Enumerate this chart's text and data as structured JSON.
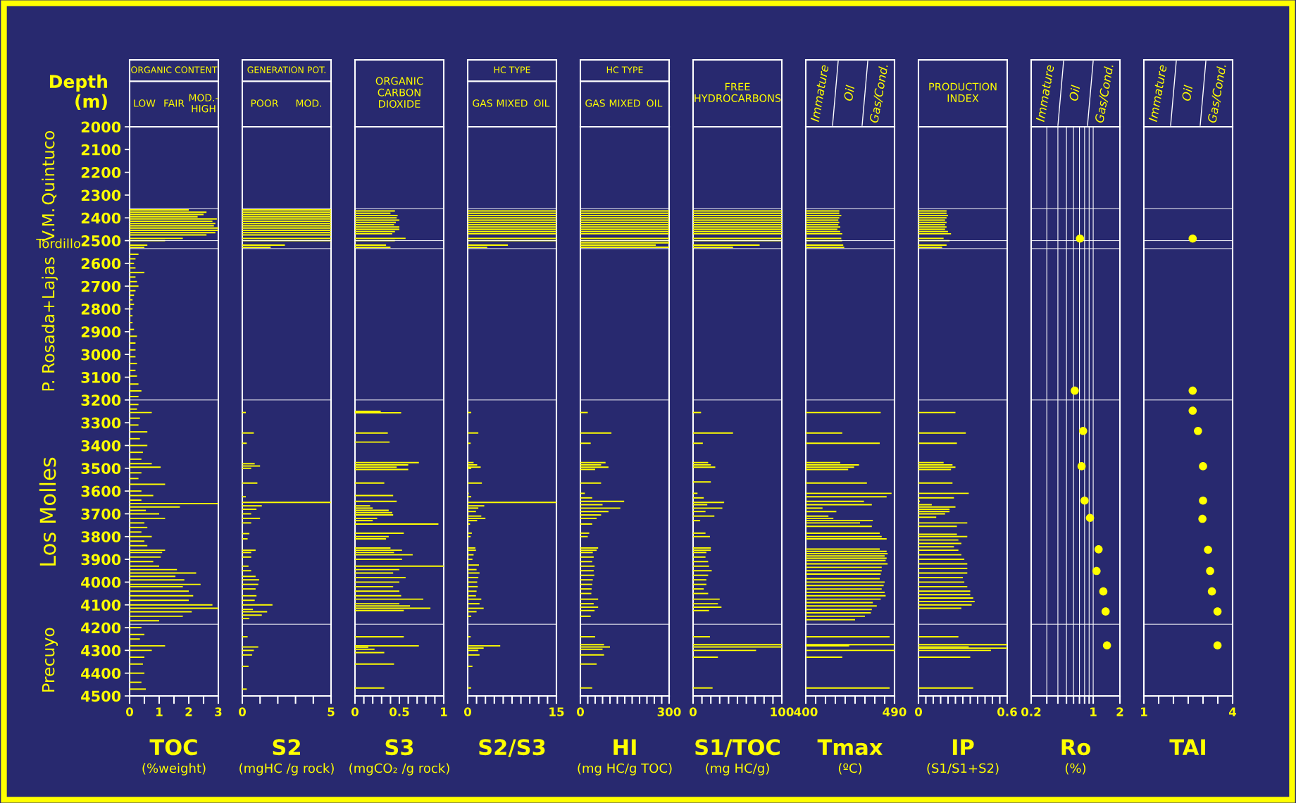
{
  "chart_data": [
    {
      "type": "bar",
      "orientation": "horizontal",
      "title": "ORGANIC CONTENT",
      "xlabel": "TOC\n(%weight)",
      "ylabel": "Depth\n(m)",
      "color": "#ffff00",
      "annotations": [
        "LOW",
        "FAIR",
        "MOD.-\nHIGH"
      ],
      "x": [
        2365,
        2375,
        2385,
        2395,
        2405,
        2415,
        2425,
        2435,
        2445,
        2455,
        2465,
        2475,
        2490,
        2500,
        2520,
        2530,
        2560,
        2580,
        2600,
        2620,
        2640,
        2660,
        2680,
        2700,
        2720,
        2740,
        2760,
        2780,
        2800,
        2830,
        2860,
        2890,
        2920,
        2950,
        2980,
        3010,
        3040,
        3070,
        3095,
        3130,
        3160,
        3185,
        3220,
        3240,
        3255,
        3280,
        3310,
        3340,
        3370,
        3400,
        3430,
        3460,
        3480,
        3495,
        3520,
        3545,
        3570,
        3600,
        3620,
        3640,
        3655,
        3670,
        3685,
        3700,
        3720,
        3740,
        3760,
        3780,
        3800,
        3820,
        3840,
        3860,
        3870,
        3890,
        3910,
        3930,
        3945,
        3960,
        3975,
        3990,
        4010,
        4020,
        4040,
        4060,
        4080,
        4100,
        4115,
        4130,
        4150,
        4170,
        4200,
        4230,
        4250,
        4280,
        4300,
        4330,
        4360,
        4400,
        4440,
        4470
      ],
      "values": [
        2.0,
        2.6,
        2.5,
        2.3,
        2.95,
        2.8,
        2.9,
        2.85,
        3,
        3,
        2.9,
        2.6,
        1.8,
        1.2,
        0.6,
        0.5,
        0.3,
        0.2,
        0.15,
        0.2,
        0.5,
        0.2,
        0.25,
        0.3,
        0.2,
        0.15,
        0.1,
        0.15,
        0.1,
        0.1,
        0.1,
        0.15,
        0.25,
        0.2,
        0.2,
        0.2,
        0.25,
        0.2,
        0.25,
        0.3,
        0.4,
        0.3,
        0.3,
        0.25,
        0.75,
        0.35,
        0.3,
        0.6,
        0.35,
        0.6,
        0.45,
        0.4,
        0.75,
        1.05,
        0.4,
        0.3,
        1.2,
        0.4,
        0.8,
        0.4,
        3,
        1.7,
        0.55,
        1.0,
        1.2,
        0.5,
        0.6,
        0.4,
        0.75,
        0.5,
        0.6,
        1.2,
        1.1,
        1.05,
        0.8,
        1.0,
        1.6,
        2.25,
        1.55,
        1.85,
        2.4,
        1.8,
        2.0,
        2.15,
        2.0,
        2.8,
        3,
        2.1,
        1.8,
        1.0,
        0.4,
        0.5,
        0.35,
        1.2,
        0.75,
        0.5,
        0.45,
        0.5,
        0.4,
        0.55
      ],
      "xlim": [
        0,
        3
      ],
      "xticks": [
        0,
        {
          "value": 0.5,
          "label": null
        },
        1,
        {
          "value": 1.5,
          "label": null
        },
        2,
        {
          "value": 2.5,
          "label": null
        },
        3
      ],
      "ylim": [
        4500,
        2000
      ],
      "yticks": [
        2000,
        2100,
        2200,
        2300,
        2400,
        2500,
        2600,
        2700,
        2800,
        2900,
        3000,
        3100,
        3200,
        3300,
        3400,
        3500,
        3600,
        3700,
        3800,
        3900,
        4000,
        4100,
        4200,
        4300,
        4400,
        4500
      ],
      "ref_lines": [
        {
          "axis": "y",
          "value": 2360,
          "color": "#ffffff"
        },
        {
          "axis": "y",
          "value": 2500,
          "color": "#ffffff"
        },
        {
          "axis": "y",
          "value": 2535,
          "color": "#ffffff"
        },
        {
          "axis": "y",
          "value": 3200,
          "color": "#ffffff"
        },
        {
          "axis": "y",
          "value": 4185,
          "color": "#ffffff"
        }
      ]
    },
    {
      "type": "bar",
      "orientation": "horizontal",
      "title": "GENERATION POT.",
      "xlabel": "S2\n(mgHC /g rock)",
      "color": "#ffff00",
      "annotations": [
        "POOR",
        "MOD."
      ],
      "tick_labels": "x",
      "x": [
        2365,
        2375,
        2385,
        2395,
        2405,
        2415,
        2425,
        2435,
        2445,
        2455,
        2465,
        2475,
        2490,
        2500,
        2520,
        2530,
        3255,
        3345,
        3390,
        3480,
        3490,
        3500,
        3565,
        3625,
        3650,
        3665,
        3680,
        3700,
        3720,
        3740,
        3787,
        3810,
        3860,
        3870,
        3890,
        3930,
        3950,
        3975,
        3990,
        4010,
        4030,
        4060,
        4080,
        4100,
        4120,
        4130,
        4145,
        4160,
        4240,
        4285,
        4300,
        4320,
        4370,
        4470
      ],
      "values": [
        5,
        5,
        5,
        5,
        5,
        5,
        5,
        5,
        5,
        5,
        5,
        5,
        5,
        5,
        2.4,
        1.6,
        0.2,
        0.65,
        0.25,
        0.7,
        1.0,
        0.5,
        0.85,
        0.2,
        5,
        1.1,
        0.8,
        0.5,
        1.0,
        0.5,
        0.4,
        0.3,
        0.75,
        0.5,
        0.5,
        0.35,
        0.5,
        0.75,
        0.95,
        0.9,
        0.75,
        0.8,
        0.7,
        1.7,
        0.6,
        1.4,
        1.1,
        0.4,
        0.3,
        0.9,
        0.65,
        0.55,
        0.35,
        0.25
      ],
      "xlim": [
        0,
        5
      ],
      "xticks": [
        0,
        {
          "value": 1,
          "label": null
        },
        {
          "value": 2,
          "label": null
        },
        {
          "value": 3,
          "label": null
        },
        {
          "value": 4,
          "label": null
        },
        5
      ],
      "ylim": [
        4500,
        2000
      ],
      "ref_lines": [
        {
          "axis": "y",
          "value": 2360,
          "color": "#ffffff"
        },
        {
          "axis": "y",
          "value": 2500,
          "color": "#ffffff"
        },
        {
          "axis": "y",
          "value": 2535,
          "color": "#ffffff"
        },
        {
          "axis": "y",
          "value": 3200,
          "color": "#ffffff"
        },
        {
          "axis": "y",
          "value": 4185,
          "color": "#ffffff"
        }
      ]
    },
    {
      "type": "bar",
      "orientation": "horizontal",
      "title": "ORGANIC\nCARBON\nDIOXIDE",
      "xlabel": "S3\n(mgCO₂ /g rock)",
      "color": "#ffff00",
      "tick_labels": "x",
      "x": [
        2370,
        2380,
        2390,
        2400,
        2410,
        2420,
        2430,
        2440,
        2450,
        2460,
        2470,
        2490,
        2500,
        2520,
        2530,
        3250,
        3256,
        3345,
        3385,
        3475,
        3485,
        3495,
        3505,
        3565,
        3620,
        3645,
        3665,
        3675,
        3685,
        3695,
        3705,
        3720,
        3730,
        3745,
        3785,
        3800,
        3810,
        3850,
        3860,
        3870,
        3880,
        3900,
        3930,
        3945,
        3960,
        3980,
        4000,
        4020,
        4040,
        4060,
        4075,
        4095,
        4105,
        4115,
        4125,
        4240,
        4280,
        4286,
        4295,
        4310,
        4360,
        4465
      ],
      "values": [
        0.45,
        0.4,
        0.48,
        0.47,
        0.5,
        0.46,
        0.44,
        0.5,
        0.5,
        0.45,
        0.42,
        0.57,
        0.45,
        0.35,
        0.4,
        0.29,
        0.52,
        0.37,
        0.39,
        0.72,
        0.6,
        0.47,
        0.6,
        0.33,
        0.43,
        0.47,
        0.17,
        0.2,
        0.38,
        0.42,
        0.43,
        0.25,
        0.2,
        0.94,
        0.55,
        0.38,
        0.35,
        0.4,
        0.53,
        0.44,
        0.65,
        0.53,
        1,
        0.5,
        0.43,
        0.57,
        0.5,
        0.43,
        0.5,
        0.52,
        0.77,
        0.5,
        0.62,
        0.85,
        0.55,
        0.55,
        0.72,
        0.15,
        0.22,
        0.33,
        0.44,
        0.33
      ],
      "xlim": [
        0,
        1
      ],
      "xticks": [
        0,
        {
          "value": 0.1,
          "label": null
        },
        {
          "value": 0.2,
          "label": null
        },
        {
          "value": 0.3,
          "label": null
        },
        {
          "value": 0.4,
          "label": null
        },
        0.5,
        {
          "value": 0.6,
          "label": null
        },
        {
          "value": 0.7,
          "label": null
        },
        {
          "value": 0.8,
          "label": null
        },
        {
          "value": 0.9,
          "label": null
        },
        1
      ],
      "ylim": [
        4500,
        2000
      ],
      "ref_lines": [
        {
          "axis": "y",
          "value": 2360,
          "color": "#ffffff"
        },
        {
          "axis": "y",
          "value": 2500,
          "color": "#ffffff"
        },
        {
          "axis": "y",
          "value": 2535,
          "color": "#ffffff"
        },
        {
          "axis": "y",
          "value": 3200,
          "color": "#ffffff"
        },
        {
          "axis": "y",
          "value": 4185,
          "color": "#ffffff"
        }
      ]
    },
    {
      "type": "bar",
      "orientation": "horizontal",
      "title": "HC TYPE",
      "xlabel": "S2/S3",
      "color": "#ffff00",
      "annotations": [
        "GAS",
        "MIXED",
        "OIL"
      ],
      "tick_labels": "x",
      "x": [
        2370,
        2380,
        2390,
        2400,
        2410,
        2420,
        2430,
        2440,
        2450,
        2460,
        2470,
        2490,
        2500,
        2520,
        2530,
        3255,
        3345,
        3390,
        3475,
        3485,
        3495,
        3500,
        3565,
        3610,
        3625,
        3650,
        3665,
        3675,
        3690,
        3710,
        3720,
        3730,
        3745,
        3785,
        3800,
        3850,
        3860,
        3880,
        3900,
        3925,
        3945,
        3960,
        3980,
        4000,
        4020,
        4040,
        4060,
        4075,
        4095,
        4115,
        4130,
        4150,
        4240,
        4280,
        4290,
        4300,
        4320,
        4370,
        4465
      ],
      "values": [
        15,
        15,
        15,
        15,
        15,
        15,
        15,
        15,
        15,
        15,
        15,
        15,
        15,
        6.8,
        3.3,
        0.6,
        1.8,
        0.5,
        1.0,
        1.6,
        2.2,
        0.6,
        2.4,
        0.2,
        0.6,
        15,
        2.8,
        1.8,
        1.4,
        2.3,
        3.0,
        1.6,
        0.4,
        0.7,
        0.5,
        1.3,
        1.4,
        1.0,
        0.8,
        1.9,
        1.5,
        2.0,
        1.8,
        1.6,
        1.7,
        1.5,
        1.4,
        2.3,
        2.0,
        2.7,
        1.5,
        0.6,
        0.5,
        5.5,
        2.7,
        1.8,
        2.0,
        0.8,
        0.6
      ],
      "xlim": [
        0,
        15
      ],
      "xticks": [
        0,
        {
          "value": 1.5,
          "label": null
        },
        {
          "value": 3,
          "label": null
        },
        {
          "value": 4.5,
          "label": null
        },
        {
          "value": 6,
          "label": null
        },
        {
          "value": 7.5,
          "label": null
        },
        {
          "value": 9,
          "label": null
        },
        {
          "value": 10.5,
          "label": null
        },
        {
          "value": 12,
          "label": null
        },
        {
          "value": 13.5,
          "label": null
        },
        15
      ],
      "ylim": [
        4500,
        2000
      ],
      "ref_lines": [
        {
          "axis": "y",
          "value": 2360,
          "color": "#ffffff"
        },
        {
          "axis": "y",
          "value": 2500,
          "color": "#ffffff"
        },
        {
          "axis": "y",
          "value": 2535,
          "color": "#ffffff"
        },
        {
          "axis": "y",
          "value": 3200,
          "color": "#ffffff"
        },
        {
          "axis": "y",
          "value": 4185,
          "color": "#ffffff"
        }
      ]
    },
    {
      "type": "bar",
      "orientation": "horizontal",
      "title": "HC TYPE",
      "xlabel": "HI\n(mg HC/g TOC)",
      "color": "#ffff00",
      "annotations": [
        "GAS",
        "MIXED",
        "OIL"
      ],
      "tick_labels": "x",
      "x": [
        2370,
        2380,
        2390,
        2400,
        2410,
        2420,
        2430,
        2440,
        2450,
        2460,
        2470,
        2490,
        2500,
        2510,
        2520,
        2529,
        3255,
        3345,
        3390,
        3475,
        3485,
        3495,
        3505,
        3565,
        3610,
        3630,
        3645,
        3660,
        3675,
        3690,
        3705,
        3720,
        3745,
        3785,
        3800,
        3850,
        3860,
        3870,
        3890,
        3910,
        3930,
        3950,
        3970,
        3990,
        4010,
        4030,
        4050,
        4075,
        4095,
        4110,
        4125,
        4150,
        4240,
        4275,
        4285,
        4295,
        4320,
        4360,
        4465
      ],
      "values": [
        300,
        300,
        300,
        300,
        300,
        300,
        300,
        300,
        300,
        300,
        300,
        300,
        300,
        300,
        255,
        300,
        25,
        105,
        35,
        85,
        70,
        95,
        50,
        70,
        15,
        40,
        148,
        75,
        135,
        95,
        70,
        55,
        40,
        30,
        25,
        60,
        55,
        42,
        45,
        40,
        48,
        45,
        47,
        42,
        40,
        38,
        37,
        60,
        45,
        60,
        48,
        35,
        50,
        80,
        100,
        75,
        80,
        55,
        40
      ],
      "xlim": [
        0,
        300
      ],
      "xticks": [
        0,
        {
          "value": 25,
          "label": null
        },
        {
          "value": 50,
          "label": null
        },
        {
          "value": 75,
          "label": null
        },
        {
          "value": 100,
          "label": null
        },
        {
          "value": 125,
          "label": null
        },
        {
          "value": 150,
          "label": null
        },
        {
          "value": 175,
          "label": null
        },
        {
          "value": 200,
          "label": null
        },
        {
          "value": 225,
          "label": null
        },
        {
          "value": 250,
          "label": null
        },
        {
          "value": 275,
          "label": null
        },
        300
      ],
      "ylim": [
        4500,
        2000
      ],
      "ref_lines": [
        {
          "axis": "y",
          "value": 2360,
          "color": "#ffffff"
        },
        {
          "axis": "y",
          "value": 2500,
          "color": "#ffffff"
        },
        {
          "axis": "y",
          "value": 2535,
          "color": "#ffffff"
        },
        {
          "axis": "y",
          "value": 3200,
          "color": "#ffffff"
        },
        {
          "axis": "y",
          "value": 4185,
          "color": "#ffffff"
        }
      ]
    },
    {
      "type": "bar",
      "orientation": "horizontal",
      "title": "FREE\nHYDROCARBONS",
      "xlabel": "S1/TOC\n(mg HC/g)",
      "color": "#ffff00",
      "tick_labels": "x",
      "x": [
        2370,
        2380,
        2390,
        2400,
        2410,
        2420,
        2430,
        2440,
        2450,
        2460,
        2470,
        2490,
        2500,
        2520,
        2530,
        3255,
        3345,
        3390,
        3475,
        3485,
        3495,
        3560,
        3610,
        3630,
        3650,
        3660,
        3675,
        3690,
        3710,
        3730,
        3785,
        3800,
        3850,
        3860,
        3870,
        3890,
        3910,
        3930,
        3950,
        3970,
        3990,
        4010,
        4030,
        4050,
        4075,
        4095,
        4110,
        4125,
        4240,
        4275,
        4285,
        4300,
        4330,
        4465
      ],
      "values": [
        100,
        100,
        100,
        100,
        100,
        100,
        100,
        100,
        100,
        100,
        100,
        100,
        100,
        75,
        45,
        9,
        45,
        11,
        17,
        20,
        25,
        20,
        5,
        12,
        35,
        16,
        33,
        14,
        24,
        8,
        14,
        19,
        20,
        20,
        15,
        14,
        17,
        18,
        21,
        17,
        15,
        15,
        12,
        17,
        30,
        28,
        32,
        18,
        19,
        100,
        100,
        71,
        28,
        22
      ],
      "xlim": [
        0,
        100
      ],
      "xticks": [
        0,
        {
          "value": 10,
          "label": null
        },
        {
          "value": 20,
          "label": null
        },
        {
          "value": 30,
          "label": null
        },
        {
          "value": 40,
          "label": null
        },
        {
          "value": 50,
          "label": null
        },
        {
          "value": 60,
          "label": null
        },
        {
          "value": 70,
          "label": null
        },
        {
          "value": 80,
          "label": null
        },
        {
          "value": 90,
          "label": null
        },
        100
      ],
      "ylim": [
        4500,
        2000
      ],
      "ref_lines": [
        {
          "axis": "y",
          "value": 2360,
          "color": "#ffffff"
        },
        {
          "axis": "y",
          "value": 2500,
          "color": "#ffffff"
        },
        {
          "axis": "y",
          "value": 2535,
          "color": "#ffffff"
        },
        {
          "axis": "y",
          "value": 3200,
          "color": "#ffffff"
        },
        {
          "axis": "y",
          "value": 4185,
          "color": "#ffffff"
        }
      ]
    },
    {
      "type": "bar",
      "orientation": "horizontal",
      "xlabel": "Tmax\n(ºC)",
      "color": "#ffff00",
      "annotations": [
        "Immature",
        "Oil",
        "Gas/Cond."
      ],
      "tick_labels": "x",
      "x": [
        2370,
        2380,
        2390,
        2400,
        2410,
        2420,
        2430,
        2440,
        2450,
        2460,
        2470,
        2490,
        2500,
        2520,
        2530,
        3255,
        3345,
        3390,
        3475,
        3485,
        3495,
        3505,
        3565,
        3610,
        3625,
        3645,
        3660,
        3675,
        3690,
        3710,
        3720,
        3730,
        3740,
        3755,
        3785,
        3800,
        3810,
        3855,
        3865,
        3875,
        3885,
        3895,
        3905,
        3920,
        3935,
        3950,
        3965,
        3985,
        4000,
        4015,
        4030,
        4045,
        4060,
        4075,
        4090,
        4105,
        4120,
        4135,
        4150,
        4165,
        4240,
        4275,
        4280,
        4300,
        4330,
        4465
      ],
      "values": [
        434,
        434,
        436,
        434,
        433,
        434,
        433,
        435,
        432,
        435,
        437,
        436,
        437,
        438,
        439,
        476,
        437,
        475,
        435,
        454,
        449,
        443,
        462,
        487,
        482,
        459,
        467,
        417,
        431,
        423,
        428,
        468,
        455,
        467,
        475,
        477,
        482,
        475,
        482,
        483,
        480,
        482,
        481,
        483,
        477,
        477,
        476,
        475,
        480,
        479,
        477,
        480,
        481,
        476,
        468,
        472,
        467,
        466,
        460,
        450,
        485,
        490,
        444,
        490,
        437,
        485
      ],
      "xlim": [
        400,
        490
      ],
      "xticks": [
        400,
        {
          "value": 410,
          "label": null
        },
        {
          "value": 420,
          "label": null
        },
        {
          "value": 430,
          "label": null
        },
        {
          "value": 440,
          "label": null
        },
        {
          "value": 450,
          "label": null
        },
        {
          "value": 460,
          "label": null
        },
        {
          "value": 470,
          "label": null
        },
        {
          "value": 480,
          "label": null
        },
        490
      ],
      "ylim": [
        4500,
        2000
      ],
      "ref_lines": [
        {
          "axis": "y",
          "value": 2360,
          "color": "#ffffff"
        },
        {
          "axis": "y",
          "value": 2500,
          "color": "#ffffff"
        },
        {
          "axis": "y",
          "value": 2535,
          "color": "#ffffff"
        },
        {
          "axis": "y",
          "value": 3200,
          "color": "#ffffff"
        },
        {
          "axis": "y",
          "value": 4185,
          "color": "#ffffff"
        }
      ]
    },
    {
      "type": "bar",
      "orientation": "horizontal",
      "title": "PRODUCTION\nINDEX",
      "xlabel": "IP\n(S1/S1+S2)",
      "color": "#ffff00",
      "tick_labels": "x",
      "x": [
        2370,
        2380,
        2390,
        2400,
        2410,
        2420,
        2430,
        2440,
        2450,
        2460,
        2470,
        2490,
        2500,
        2520,
        2530,
        3255,
        3345,
        3390,
        3475,
        3485,
        3495,
        3505,
        3565,
        3610,
        3630,
        3645,
        3660,
        3670,
        3680,
        3690,
        3700,
        3715,
        3740,
        3755,
        3790,
        3800,
        3815,
        3830,
        3845,
        3860,
        3880,
        3900,
        3920,
        3940,
        3960,
        3980,
        4000,
        4020,
        4040,
        4055,
        4070,
        4085,
        4100,
        4115,
        4240,
        4275,
        4285,
        4290,
        4300,
        4330,
        4465
      ],
      "values": [
        0.19,
        0.19,
        0.2,
        0.19,
        0.18,
        0.19,
        0.18,
        0.19,
        0.18,
        0.2,
        0.22,
        0.17,
        0.21,
        0.19,
        0.16,
        0.25,
        0.32,
        0.26,
        0.17,
        0.23,
        0.25,
        0.22,
        0.23,
        0.34,
        0.24,
        0.01,
        0.09,
        0.25,
        0.21,
        0.21,
        0.18,
        0.12,
        0.33,
        0.26,
        0.26,
        0.33,
        0.27,
        0.29,
        0.24,
        0.27,
        0.29,
        0.31,
        0.33,
        0.33,
        0.33,
        0.3,
        0.31,
        0.33,
        0.35,
        0.35,
        0.37,
        0.38,
        0.36,
        0.29,
        0.27,
        0.6,
        0.34,
        0.6,
        0.49,
        0.35,
        0.37
      ],
      "xlim": [
        0,
        0.6
      ],
      "xticks": [
        0,
        {
          "value": 0.05,
          "label": null
        },
        {
          "value": 0.1,
          "label": null
        },
        {
          "value": 0.15,
          "label": null
        },
        {
          "value": 0.2,
          "label": null
        },
        {
          "value": 0.25,
          "label": null
        },
        {
          "value": 0.3,
          "label": null
        },
        {
          "value": 0.35,
          "label": null
        },
        {
          "value": 0.4,
          "label": null
        },
        {
          "value": 0.45,
          "label": null
        },
        {
          "value": 0.5,
          "label": null
        },
        {
          "value": 0.55,
          "label": null
        },
        0.6
      ],
      "ylim": [
        4500,
        2000
      ],
      "ref_lines": [
        {
          "axis": "y",
          "value": 2360,
          "color": "#ffffff"
        },
        {
          "axis": "y",
          "value": 2500,
          "color": "#ffffff"
        },
        {
          "axis": "y",
          "value": 2535,
          "color": "#ffffff"
        },
        {
          "axis": "y",
          "value": 3200,
          "color": "#ffffff"
        },
        {
          "axis": "y",
          "value": 4185,
          "color": "#ffffff"
        }
      ]
    },
    {
      "type": "scatter",
      "xlabel": "Ro\n(%)",
      "color": "#ffff00",
      "marker": "circle",
      "annotations": [
        "Immature",
        "Oil",
        "Gas/Cond."
      ],
      "tick_labels": "x",
      "log": "x",
      "grid": "x",
      "x": [
        0.71,
        0.62,
        0.77,
        0.74,
        0.8,
        0.92,
        1.15,
        1.09,
        1.3,
        1.38,
        1.43
      ],
      "values": [
        2491,
        3159,
        3336,
        3491,
        3642,
        3718,
        3856,
        3951,
        4041,
        4129,
        4278
      ],
      "xlim": [
        0.2,
        2
      ],
      "xticks": [
        0.2,
        {
          "value": 0.3,
          "label": null
        },
        {
          "value": 0.4,
          "label": null
        },
        {
          "value": 0.5,
          "label": null
        },
        {
          "value": 0.6,
          "label": null
        },
        {
          "value": 0.7,
          "label": null
        },
        {
          "value": 0.8,
          "label": null
        },
        {
          "value": 0.9,
          "label": null
        },
        1,
        2
      ],
      "ylim": [
        4500,
        2000
      ],
      "ref_lines": [
        {
          "axis": "y",
          "value": 2360,
          "color": "#ffffff"
        },
        {
          "axis": "y",
          "value": 2500,
          "color": "#ffffff"
        },
        {
          "axis": "y",
          "value": 2535,
          "color": "#ffffff"
        },
        {
          "axis": "y",
          "value": 3200,
          "color": "#ffffff"
        },
        {
          "axis": "y",
          "value": 4185,
          "color": "#ffffff"
        }
      ]
    },
    {
      "type": "scatter",
      "xlabel": "TAI",
      "color": "#ffff00",
      "marker": "circle",
      "annotations": [
        "Immature",
        "Oil",
        "Gas/Cond."
      ],
      "tick_labels": "x",
      "x": [
        2.65,
        2.65,
        2.65,
        2.83,
        3.0,
        3.0,
        2.98,
        3.17,
        3.24,
        3.3,
        3.49,
        3.49
      ],
      "values": [
        2491,
        3159,
        3247,
        3336,
        3491,
        3642,
        3722,
        3858,
        3951,
        4041,
        4129,
        4278
      ],
      "xlim": [
        1,
        4
      ],
      "xticks": [
        1,
        {
          "value": 1.5,
          "label": null
        },
        {
          "value": 2,
          "label": null
        },
        {
          "value": 2.5,
          "label": null
        },
        {
          "value": 3,
          "label": null
        },
        {
          "value": 3.5,
          "label": null
        },
        4
      ],
      "ylim": [
        4500,
        2000
      ],
      "ref_lines": [
        {
          "axis": "y",
          "value": 2360,
          "color": "#ffffff"
        },
        {
          "axis": "y",
          "value": 2500,
          "color": "#ffffff"
        },
        {
          "axis": "y",
          "value": 2535,
          "color": "#ffffff"
        },
        {
          "axis": "y",
          "value": 3200,
          "color": "#ffffff"
        },
        {
          "axis": "y",
          "value": 4185,
          "color": "#ffffff"
        }
      ]
    },
    {
      "type": "other",
      "annotations": [
        "Quintuco",
        "V.M.",
        "Tordillo",
        "P. Rosada+Lajas",
        "Los Molles",
        "Precuyo"
      ]
    }
  ]
}
